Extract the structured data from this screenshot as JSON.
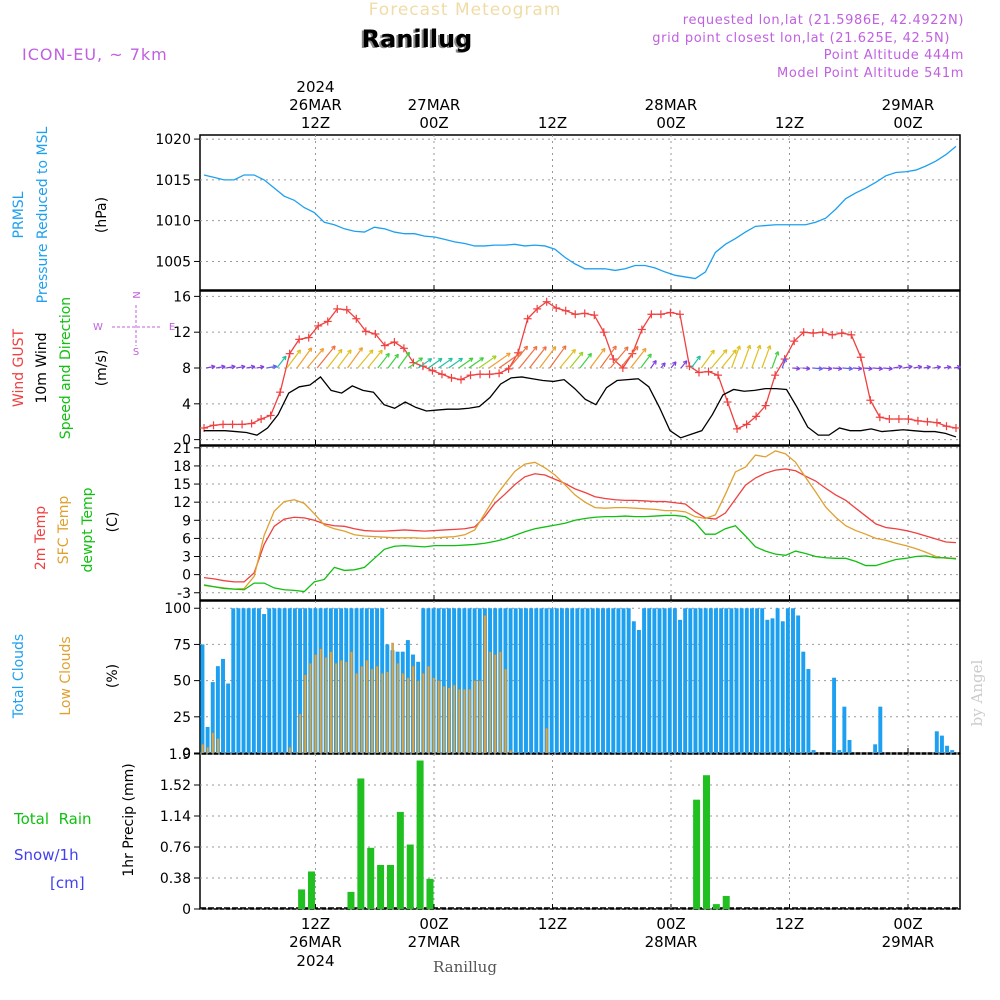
{
  "header": {
    "title": "Forecast Meteogram",
    "location": "Ranillug",
    "model": "ICON-EU, ~ 7km",
    "requested": "requested lon,lat (21.5986E, 42.4922N)",
    "gridpoint": "grid point closest lon,lat (21.625E, 42.5N)",
    "point_alt": "Point Altitude 444m",
    "model_alt": "Model Point Altitude 541m",
    "footer_name": "Ranillug",
    "watermark": "by Angel"
  },
  "colors": {
    "blue": "#1ea0f0",
    "red": "#f04040",
    "black": "#000000",
    "orange": "#e0a030",
    "green": "#10c010",
    "purple": "#c060e0",
    "bar_green": "#20c020",
    "snow_blue": "#4040f0",
    "tan": "#d4a850"
  },
  "time_axis": {
    "year": "2024",
    "ticks": [
      {
        "h": 12,
        "top1": "26MAR",
        "top2": "12Z",
        "bot1": "12Z",
        "bot2": "26MAR",
        "bot3": "2024"
      },
      {
        "h": 24,
        "top1": "27MAR",
        "top2": "00Z",
        "bot1": "00Z",
        "bot2": "27MAR",
        "bot3": ""
      },
      {
        "h": 36,
        "top1": "",
        "top2": "12Z",
        "bot1": "12Z",
        "bot2": "",
        "bot3": ""
      },
      {
        "h": 48,
        "top1": "28MAR",
        "top2": "00Z",
        "bot1": "00Z",
        "bot2": "28MAR",
        "bot3": ""
      },
      {
        "h": 60,
        "top1": "",
        "top2": "12Z",
        "bot1": "12Z",
        "bot2": "",
        "bot3": ""
      },
      {
        "h": 72,
        "top1": "29MAR",
        "top2": "00Z",
        "bot1": "00Z",
        "bot2": "29MAR",
        "bot3": ""
      }
    ]
  },
  "chart_data": [
    {
      "type": "line",
      "panel": "pressure",
      "ylabels": [
        "PRMSL",
        "Pressure Reduced to MSL",
        "(hPa)"
      ],
      "ylim": [
        1001.5,
        1020.5
      ],
      "yticks": [
        1005,
        1010,
        1015,
        1020
      ],
      "series": [
        {
          "name": "PRMSL",
          "color": "#1ea0f0",
          "values": [
            1015.6,
            1015.3,
            1015.0,
            1015.0,
            1015.6,
            1015.6,
            1015.0,
            1014.0,
            1013.0,
            1012.5,
            1011.6,
            1011.0,
            1009.8,
            1009.5,
            1009.0,
            1008.7,
            1008.6,
            1009.2,
            1009.0,
            1008.6,
            1008.4,
            1008.4,
            1008.1,
            1008.0,
            1007.7,
            1007.4,
            1007.2,
            1006.9,
            1006.9,
            1007.0,
            1007.0,
            1007.1,
            1006.9,
            1007.0,
            1006.9,
            1006.5,
            1005.5,
            1004.7,
            1004.1,
            1004.1,
            1004.1,
            1003.9,
            1004.1,
            1004.5,
            1004.5,
            1004.2,
            1003.7,
            1003.3,
            1003.1,
            1002.9,
            1003.7,
            1006.1,
            1007.1,
            1007.8,
            1008.6,
            1009.3,
            1009.4,
            1009.5,
            1009.5,
            1009.5,
            1009.5,
            1009.8,
            1010.3,
            1011.4,
            1012.7,
            1013.4,
            1014.0,
            1014.7,
            1015.5,
            1015.9,
            1016.0,
            1016.2,
            1016.7,
            1017.3,
            1018.1,
            1019.1
          ]
        }
      ]
    },
    {
      "type": "line",
      "panel": "wind",
      "ylabels": [
        "Wind GUST",
        "10m Wind",
        "Speed and Direction",
        "(m/s)"
      ],
      "compass": {
        "n": "N",
        "s": "S",
        "e": "E",
        "w": "W"
      },
      "ylim": [
        -0.6,
        16.6
      ],
      "yticks": [
        0,
        4,
        8,
        12,
        16
      ],
      "series": [
        {
          "name": "Wind GUST",
          "color": "#f04040",
          "values": [
            1.3,
            1.6,
            1.7,
            1.7,
            1.7,
            1.8,
            2.3,
            2.7,
            5.3,
            9.6,
            11.2,
            11.4,
            12.7,
            13.2,
            14.6,
            14.5,
            13.5,
            12.1,
            11.8,
            10.5,
            10.9,
            10.2,
            8.6,
            8.2,
            7.7,
            7.3,
            6.9,
            6.7,
            7.2,
            7.3,
            7.3,
            7.4,
            7.9,
            9.7,
            13.5,
            14.6,
            15.4,
            14.7,
            14.4,
            14.0,
            14.1,
            13.9,
            12.0,
            9.0,
            8.0,
            9.6,
            12.3,
            14.0,
            14.0,
            14.2,
            14.0,
            8.2,
            7.5,
            7.6,
            7.2,
            4.2,
            1.2,
            1.7,
            2.6,
            3.8,
            7.2,
            9.0,
            11.0,
            12.0,
            11.9,
            12.0,
            11.7,
            11.9,
            11.7,
            9.2,
            4.4,
            2.5,
            2.3,
            2.3,
            2.3,
            2.1,
            2.0,
            1.9,
            1.5,
            1.3
          ]
        },
        {
          "name": "10m Wind",
          "color": "#000000",
          "values": [
            1.0,
            1.0,
            1.0,
            0.9,
            0.8,
            0.5,
            1.3,
            2.8,
            5.2,
            5.9,
            6.1,
            7.0,
            5.5,
            5.2,
            6.0,
            5.5,
            5.3,
            3.9,
            3.5,
            4.2,
            3.6,
            3.2,
            3.3,
            3.4,
            3.4,
            3.5,
            3.7,
            4.7,
            6.2,
            6.9,
            7.0,
            6.8,
            6.6,
            6.5,
            6.7,
            5.7,
            4.5,
            3.9,
            5.8,
            6.6,
            6.7,
            6.8,
            5.9,
            3.6,
            1.0,
            0.2,
            0.6,
            1.0,
            2.8,
            5.0,
            5.6,
            5.4,
            5.5,
            5.7,
            5.7,
            5.6,
            3.6,
            1.4,
            0.5,
            0.5,
            1.3,
            1.0,
            1.0,
            1.2,
            0.9,
            1.0,
            1.1,
            1.0,
            0.9,
            0.9,
            0.7,
            0.3
          ]
        },
        {
          "name": "Speed and Direction",
          "color": "#10c010",
          "values": []
        }
      ]
    },
    {
      "type": "line",
      "panel": "temperature",
      "ylabels": [
        "2m Temp",
        "SFC Temp",
        "dewpt Temp",
        "(C)"
      ],
      "ylim": [
        -4.2,
        21.3
      ],
      "yticks": [
        -3,
        0,
        3,
        6,
        9,
        12,
        15,
        18,
        21
      ],
      "series": [
        {
          "name": "2m Temp",
          "color": "#f04040",
          "values": [
            -0.5,
            -0.7,
            -1.0,
            -1.2,
            -1.2,
            0.3,
            5.0,
            8.0,
            9.2,
            9.5,
            9.4,
            9.0,
            8.4,
            8.1,
            8.0,
            7.6,
            7.3,
            7.2,
            7.2,
            7.3,
            7.4,
            7.3,
            7.2,
            7.3,
            7.4,
            7.5,
            7.6,
            7.9,
            9.6,
            11.8,
            13.3,
            14.9,
            16.2,
            16.7,
            16.5,
            15.8,
            15.1,
            14.2,
            13.6,
            12.9,
            12.6,
            12.4,
            12.3,
            12.3,
            12.2,
            12.1,
            12.1,
            11.9,
            11.7,
            10.4,
            9.4,
            9.2,
            10.2,
            12.5,
            14.8,
            16.0,
            16.8,
            17.3,
            17.5,
            17.2,
            16.3,
            15.5,
            14.3,
            13.2,
            12.3,
            11.0,
            9.7,
            8.4,
            7.8,
            7.6,
            7.3,
            6.9,
            6.4,
            5.9,
            5.4,
            5.3
          ]
        },
        {
          "name": "SFC Temp",
          "color": "#e0a030",
          "values": [
            -1.8,
            -2.0,
            -2.2,
            -2.4,
            -2.3,
            -0.3,
            6.5,
            10.5,
            12.1,
            12.4,
            11.8,
            10.1,
            8.2,
            7.6,
            7.2,
            6.6,
            6.4,
            6.3,
            6.2,
            6.1,
            6.1,
            6.1,
            6.0,
            6.1,
            6.2,
            6.3,
            6.6,
            7.4,
            10.1,
            12.8,
            15.0,
            17.1,
            18.3,
            18.6,
            17.7,
            16.5,
            14.9,
            13.2,
            12.0,
            11.1,
            11.0,
            11.1,
            11.1,
            11.0,
            10.9,
            10.8,
            10.6,
            10.6,
            10.4,
            9.6,
            9.3,
            9.9,
            13.3,
            17.0,
            17.8,
            19.8,
            19.5,
            20.5,
            20.0,
            18.6,
            16.1,
            13.7,
            11.2,
            9.5,
            8.1,
            7.3,
            6.7,
            6.0,
            5.7,
            5.2,
            4.8,
            4.3,
            3.7,
            3.0,
            2.7,
            2.7
          ]
        },
        {
          "name": "dewpt Temp",
          "color": "#10c010",
          "values": [
            -1.7,
            -2.0,
            -2.3,
            -2.4,
            -2.5,
            -1.4,
            -1.4,
            -2.2,
            -2.5,
            -2.6,
            -2.8,
            -1.2,
            -0.8,
            1.2,
            0.7,
            0.8,
            1.2,
            2.7,
            4.2,
            4.7,
            4.8,
            4.7,
            4.6,
            4.8,
            4.8,
            4.8,
            4.9,
            5.0,
            5.2,
            5.5,
            5.9,
            6.5,
            7.1,
            7.6,
            7.9,
            8.2,
            8.5,
            9.0,
            9.3,
            9.5,
            9.6,
            9.6,
            9.7,
            9.6,
            9.6,
            9.7,
            9.8,
            9.8,
            9.6,
            8.6,
            6.7,
            6.7,
            7.6,
            8.1,
            6.4,
            4.6,
            3.9,
            3.4,
            3.2,
            3.9,
            3.5,
            3.0,
            2.8,
            2.7,
            2.7,
            2.2,
            1.5,
            1.5,
            2.0,
            2.5,
            2.7,
            3.0,
            3.1,
            2.8,
            2.8,
            2.6
          ]
        }
      ]
    },
    {
      "type": "bar",
      "panel": "clouds",
      "ylabels": [
        "Total Clouds",
        "Low Clouds",
        "(%)"
      ],
      "ylim": [
        0,
        105
      ],
      "yticks": [
        0,
        25,
        50,
        75,
        100
      ],
      "series": [
        {
          "name": "Total Clouds",
          "color": "#1ea0f0",
          "values": [
            75,
            18,
            49,
            60,
            65,
            48,
            100,
            100,
            100,
            100,
            100,
            100,
            96,
            100,
            100,
            100,
            100,
            100,
            100,
            100,
            100,
            100,
            100,
            100,
            100,
            100,
            100,
            100,
            100,
            100,
            100,
            100,
            100,
            100,
            100,
            100,
            75,
            71,
            70,
            70,
            78,
            68,
            63,
            100,
            100,
            100,
            100,
            100,
            100,
            100,
            100,
            100,
            100,
            100,
            100,
            100,
            100,
            100,
            100,
            100,
            100,
            100,
            100,
            100,
            100,
            100,
            100,
            100,
            100,
            100,
            100,
            100,
            100,
            100,
            100,
            100,
            100,
            100,
            100,
            100,
            100,
            100,
            100,
            100,
            91,
            85,
            100,
            100,
            100,
            100,
            100,
            100,
            100,
            92,
            100,
            100,
            100,
            100,
            100,
            100,
            100,
            100,
            100,
            100,
            100,
            100,
            100,
            100,
            100,
            100,
            92,
            93,
            100,
            91,
            100,
            100,
            95,
            70,
            58,
            2,
            0,
            0,
            0,
            52,
            2,
            32,
            9,
            0,
            0,
            0,
            0,
            6,
            32,
            0,
            0,
            0,
            0,
            0,
            0,
            0,
            0,
            0,
            0,
            15,
            12,
            5,
            2,
            0
          ]
        },
        {
          "name": "Low Clouds",
          "color": "#d4a850",
          "values": [
            6,
            4,
            14,
            10,
            0,
            0,
            0,
            0,
            0,
            0,
            0,
            0,
            0,
            0,
            0,
            0,
            0,
            4,
            0,
            27,
            54,
            62,
            68,
            72,
            66,
            70,
            62,
            64,
            63,
            70,
            55,
            60,
            64,
            58,
            60,
            55,
            56,
            76,
            62,
            55,
            52,
            60,
            50,
            55,
            60,
            52,
            50,
            46,
            45,
            47,
            44,
            44,
            44,
            50,
            50,
            95,
            70,
            68,
            70,
            58,
            2,
            0,
            0,
            0,
            0,
            0,
            0,
            17,
            0,
            0,
            0,
            0,
            0,
            0,
            0,
            0,
            0,
            0,
            0,
            0,
            0,
            0,
            0,
            0,
            0,
            0,
            0,
            0,
            0,
            0,
            0,
            0,
            0,
            0,
            0,
            0,
            0,
            0,
            0,
            0,
            0,
            0,
            0,
            0,
            0,
            0,
            0,
            0,
            0,
            0,
            0,
            0,
            0,
            0,
            0,
            0,
            0,
            0,
            0,
            0,
            0,
            0,
            0,
            0,
            0,
            0,
            0,
            0,
            0,
            0,
            0,
            0,
            0,
            0,
            0,
            0,
            0,
            0,
            0,
            0,
            0,
            0,
            0,
            0,
            0,
            0,
            0,
            0,
            0,
            0,
            0,
            0,
            0,
            0,
            0,
            0,
            0,
            0,
            0,
            0,
            0,
            0,
            0
          ]
        }
      ]
    },
    {
      "type": "bar",
      "panel": "precipitation",
      "ylabels": [
        "Total  Rain",
        "Snow/1h",
        "[cm]",
        "1hr Precip (mm)"
      ],
      "ylim": [
        0,
        1.9
      ],
      "yticks": [
        0,
        0.38,
        0.76,
        1.14,
        1.52,
        1.9
      ],
      "ytick_labels": [
        "0",
        "0.38",
        "0.76",
        "1.14",
        "1.52",
        "1.9"
      ],
      "bars": [
        {
          "h": 11,
          "v": 0.24
        },
        {
          "h": 12,
          "v": 0.46
        },
        {
          "h": 16,
          "v": 0.21
        },
        {
          "h": 17,
          "v": 1.6
        },
        {
          "h": 18,
          "v": 0.75
        },
        {
          "h": 19,
          "v": 0.54
        },
        {
          "h": 20,
          "v": 0.54
        },
        {
          "h": 21,
          "v": 1.19
        },
        {
          "h": 22,
          "v": 0.79
        },
        {
          "h": 23,
          "v": 1.82
        },
        {
          "h": 24,
          "v": 0.37
        },
        {
          "h": 51,
          "v": 1.34
        },
        {
          "h": 52,
          "v": 1.64
        },
        {
          "h": 53,
          "v": 0.06
        },
        {
          "h": 54,
          "v": 0.16
        }
      ]
    }
  ]
}
